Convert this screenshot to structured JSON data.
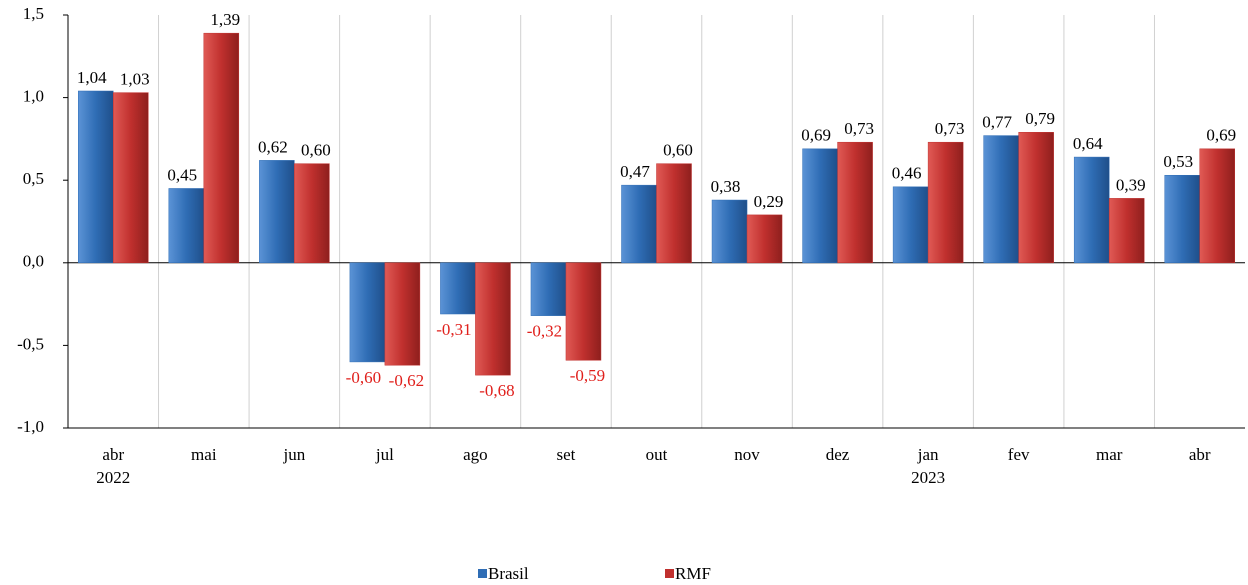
{
  "chart_data": {
    "type": "bar",
    "categories": [
      "abr",
      "mai",
      "jun",
      "jul",
      "ago",
      "set",
      "out",
      "nov",
      "dez",
      "jan",
      "fev",
      "mar",
      "abr"
    ],
    "category_years": [
      "2022",
      null,
      null,
      null,
      null,
      null,
      null,
      null,
      null,
      "2023",
      null,
      null,
      null
    ],
    "series": [
      {
        "name": "Brasil",
        "color": "#2f6db5",
        "values": [
          1.04,
          0.45,
          0.62,
          -0.6,
          -0.31,
          -0.32,
          0.47,
          0.38,
          0.69,
          0.46,
          0.77,
          0.64,
          0.53
        ],
        "value_labels": [
          "1,04",
          "0,45",
          "0,62",
          "-0,60",
          "-0,31",
          "-0,32",
          "0,47",
          "0,38",
          "0,69",
          "0,46",
          "0,77",
          "0,64",
          "0,53"
        ]
      },
      {
        "name": "RMF",
        "color": "#c0302e",
        "values": [
          1.03,
          1.39,
          0.6,
          -0.62,
          -0.68,
          -0.59,
          0.6,
          0.29,
          0.73,
          0.73,
          0.79,
          0.39,
          0.69
        ],
        "value_labels": [
          "1,03",
          "1,39",
          "0,60",
          "-0,62",
          "-0,68",
          "-0,59",
          "0,60",
          "0,29",
          "0,73",
          "0,73",
          "0,79",
          "0,39",
          "0,69"
        ]
      }
    ],
    "ylim": [
      -1.0,
      1.5
    ],
    "yticks": [
      {
        "value": -1.0,
        "label": "-1,0"
      },
      {
        "value": -0.5,
        "label": "-0,5"
      },
      {
        "value": 0,
        "label": "0,0"
      },
      {
        "value": 0.5,
        "label": "0,5"
      },
      {
        "value": 1.0,
        "label": "1,0"
      },
      {
        "value": 1.5,
        "label": "1,5"
      }
    ],
    "legend": "bottom"
  }
}
